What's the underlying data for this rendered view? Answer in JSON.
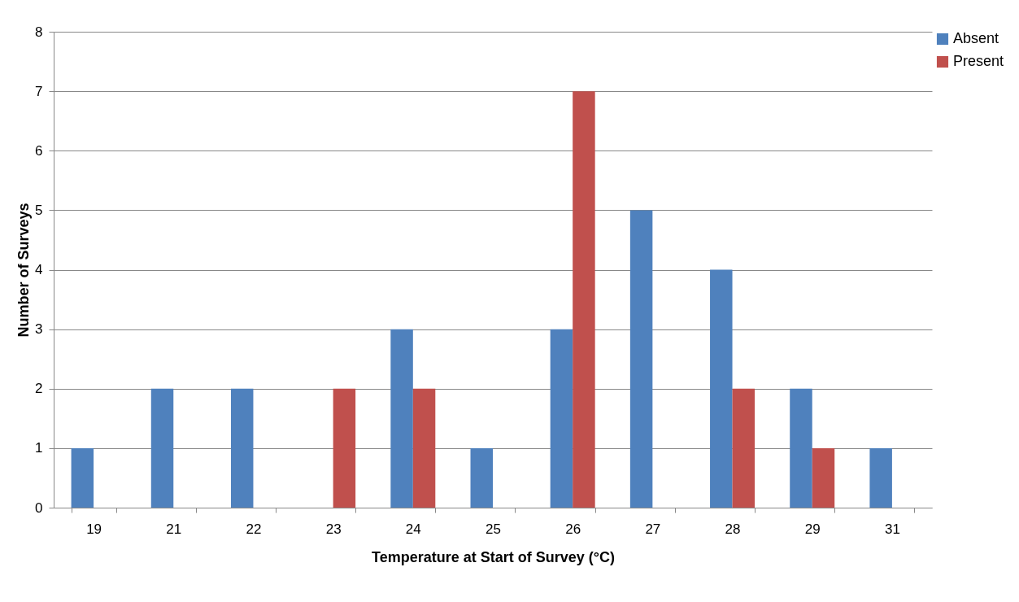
{
  "chart_data": {
    "type": "bar",
    "xlabel": "Temperature at Start of Survey (°C)",
    "ylabel": "Number of Surveys",
    "categories": [
      "19",
      "21",
      "22",
      "23",
      "24",
      "25",
      "26",
      "27",
      "28",
      "29",
      "31"
    ],
    "series": [
      {
        "name": "Absent",
        "color": "#4f81bd",
        "values": [
          1,
          2,
          2,
          0,
          3,
          1,
          3,
          5,
          4,
          2,
          1
        ]
      },
      {
        "name": "Present",
        "color": "#c0504d",
        "values": [
          0,
          0,
          0,
          2,
          2,
          0,
          7,
          0,
          2,
          1,
          0
        ]
      }
    ],
    "ylim": [
      0,
      8
    ],
    "yticks": [
      0,
      1,
      2,
      3,
      4,
      5,
      6,
      7,
      8
    ],
    "grid": "y",
    "legend": "right"
  }
}
